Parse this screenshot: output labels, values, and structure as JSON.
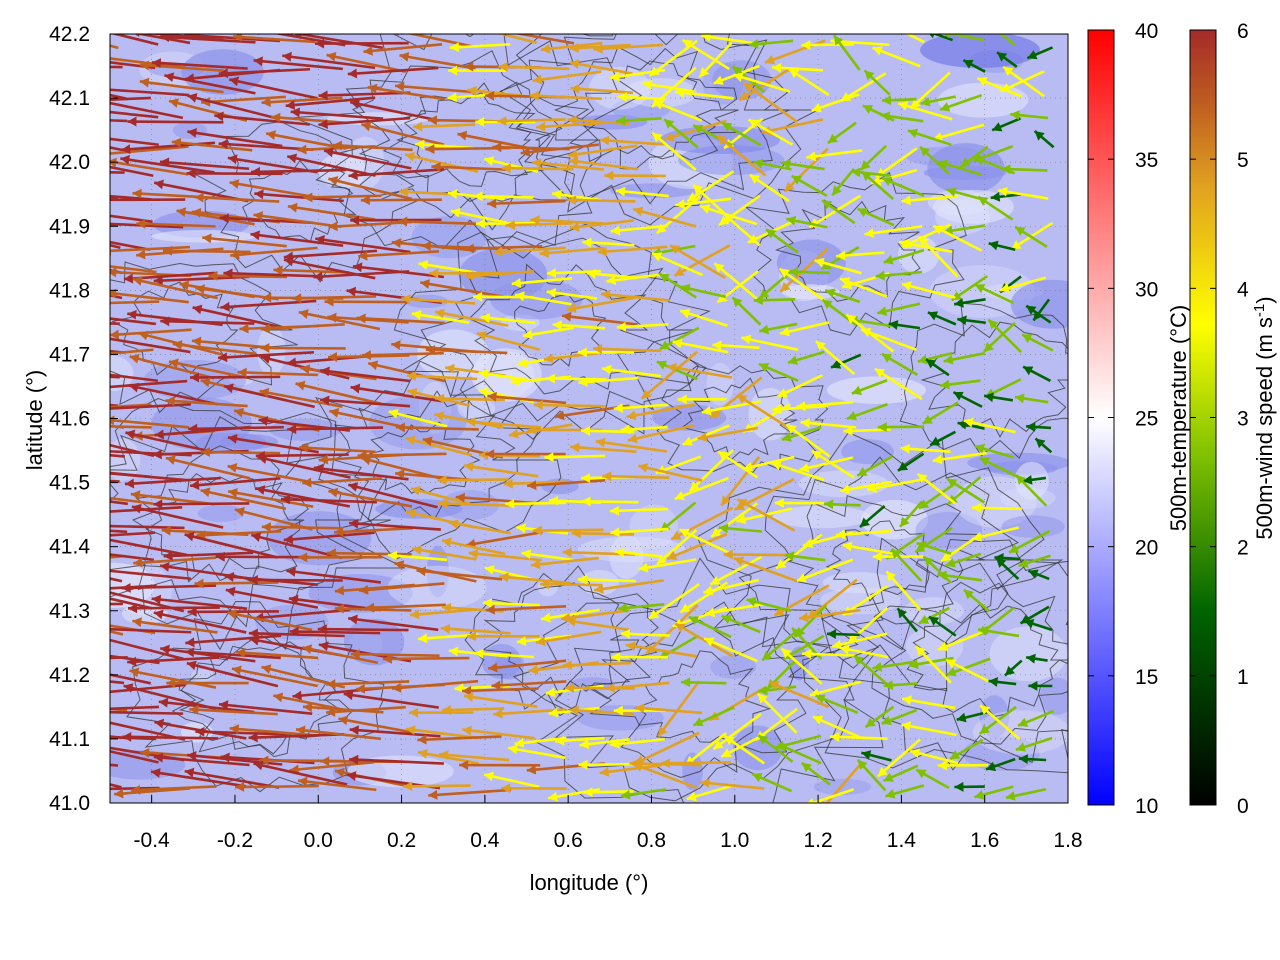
{
  "chart_data": {
    "type": "vector-field-heatmap",
    "xlabel": "longitude (°)",
    "ylabel": "latitude (°)",
    "xlim": [
      -0.5,
      1.8
    ],
    "ylim": [
      41.0,
      42.2
    ],
    "x_ticks": [
      "-0.4",
      "-0.2",
      "0.0",
      "0.2",
      "0.4",
      "0.6",
      "0.8",
      "1.0",
      "1.2",
      "1.4",
      "1.6",
      "1.8"
    ],
    "y_ticks": [
      "41.0",
      "41.1",
      "41.2",
      "41.3",
      "41.4",
      "41.5",
      "41.6",
      "41.7",
      "41.8",
      "41.9",
      "42.0",
      "42.1",
      "42.2"
    ],
    "grid": true,
    "temperature_colorbar": {
      "label": "500m-temperature (°C)",
      "range": [
        10,
        40
      ],
      "ticks": [
        "10",
        "15",
        "20",
        "25",
        "30",
        "35",
        "40"
      ],
      "colors": [
        "#0000ff",
        "#ffffff",
        "#ff0000"
      ]
    },
    "wind_colorbar": {
      "label_main": "500m-wind speed (m s",
      "label_sup": "-1",
      "label_end": ")",
      "range": [
        0,
        6
      ],
      "ticks": [
        "0",
        "1",
        "2",
        "3",
        "4",
        "5",
        "6"
      ],
      "colors": [
        "#000000",
        "#006400",
        "#7fc000",
        "#ffff00",
        "#e0a020",
        "#c06020",
        "#a52a2a"
      ]
    },
    "background_temperature_approx": 19,
    "wind_field_summary": {
      "west_region_speed": 6,
      "west_region_direction": "westward",
      "center_speed": 4,
      "east_region_speed": 2
    }
  }
}
